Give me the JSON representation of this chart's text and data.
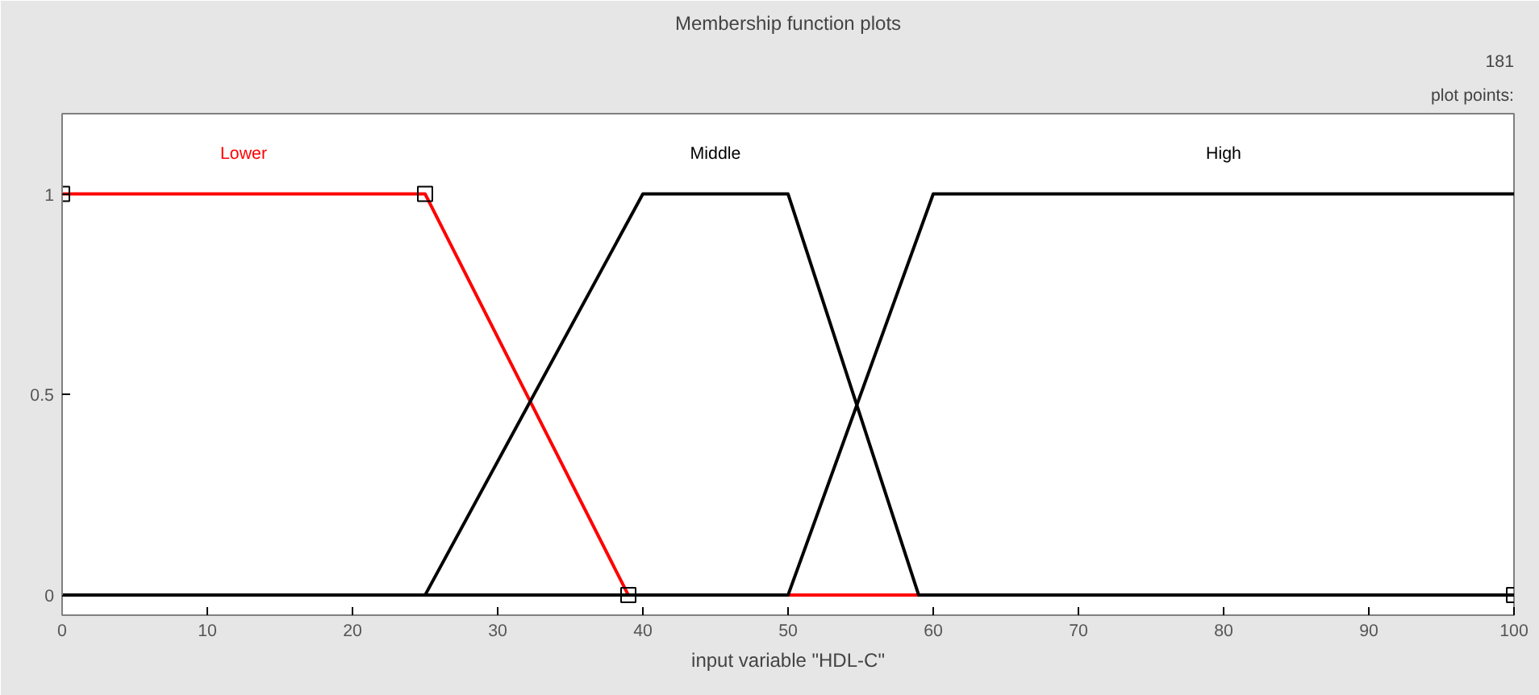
{
  "chart_data": {
    "type": "line",
    "title": "Membership function plots",
    "xlabel": "input variable \"HDL-C\"",
    "annotations": [
      "plot points:",
      "181"
    ],
    "xlim": [
      0,
      100
    ],
    "xticks": [
      0,
      10,
      20,
      30,
      40,
      50,
      60,
      70,
      80,
      90,
      100
    ],
    "ylim": [
      -0.05,
      1.2
    ],
    "yticks": [
      0,
      0.5,
      1
    ],
    "grid": false,
    "legend": false,
    "series": [
      {
        "name": "Lower",
        "color": "#ff0000",
        "marker": "square",
        "x": [
          0,
          25,
          39,
          100
        ],
        "values": [
          1,
          1,
          0,
          0
        ]
      },
      {
        "name": "Middle",
        "color": "#000000",
        "x": [
          0,
          25,
          40,
          50,
          59,
          100
        ],
        "values": [
          0,
          0,
          1,
          1,
          0,
          0
        ]
      },
      {
        "name": "High",
        "color": "#000000",
        "x": [
          0,
          50,
          60,
          100
        ],
        "values": [
          0,
          0,
          1,
          1
        ]
      }
    ]
  }
}
